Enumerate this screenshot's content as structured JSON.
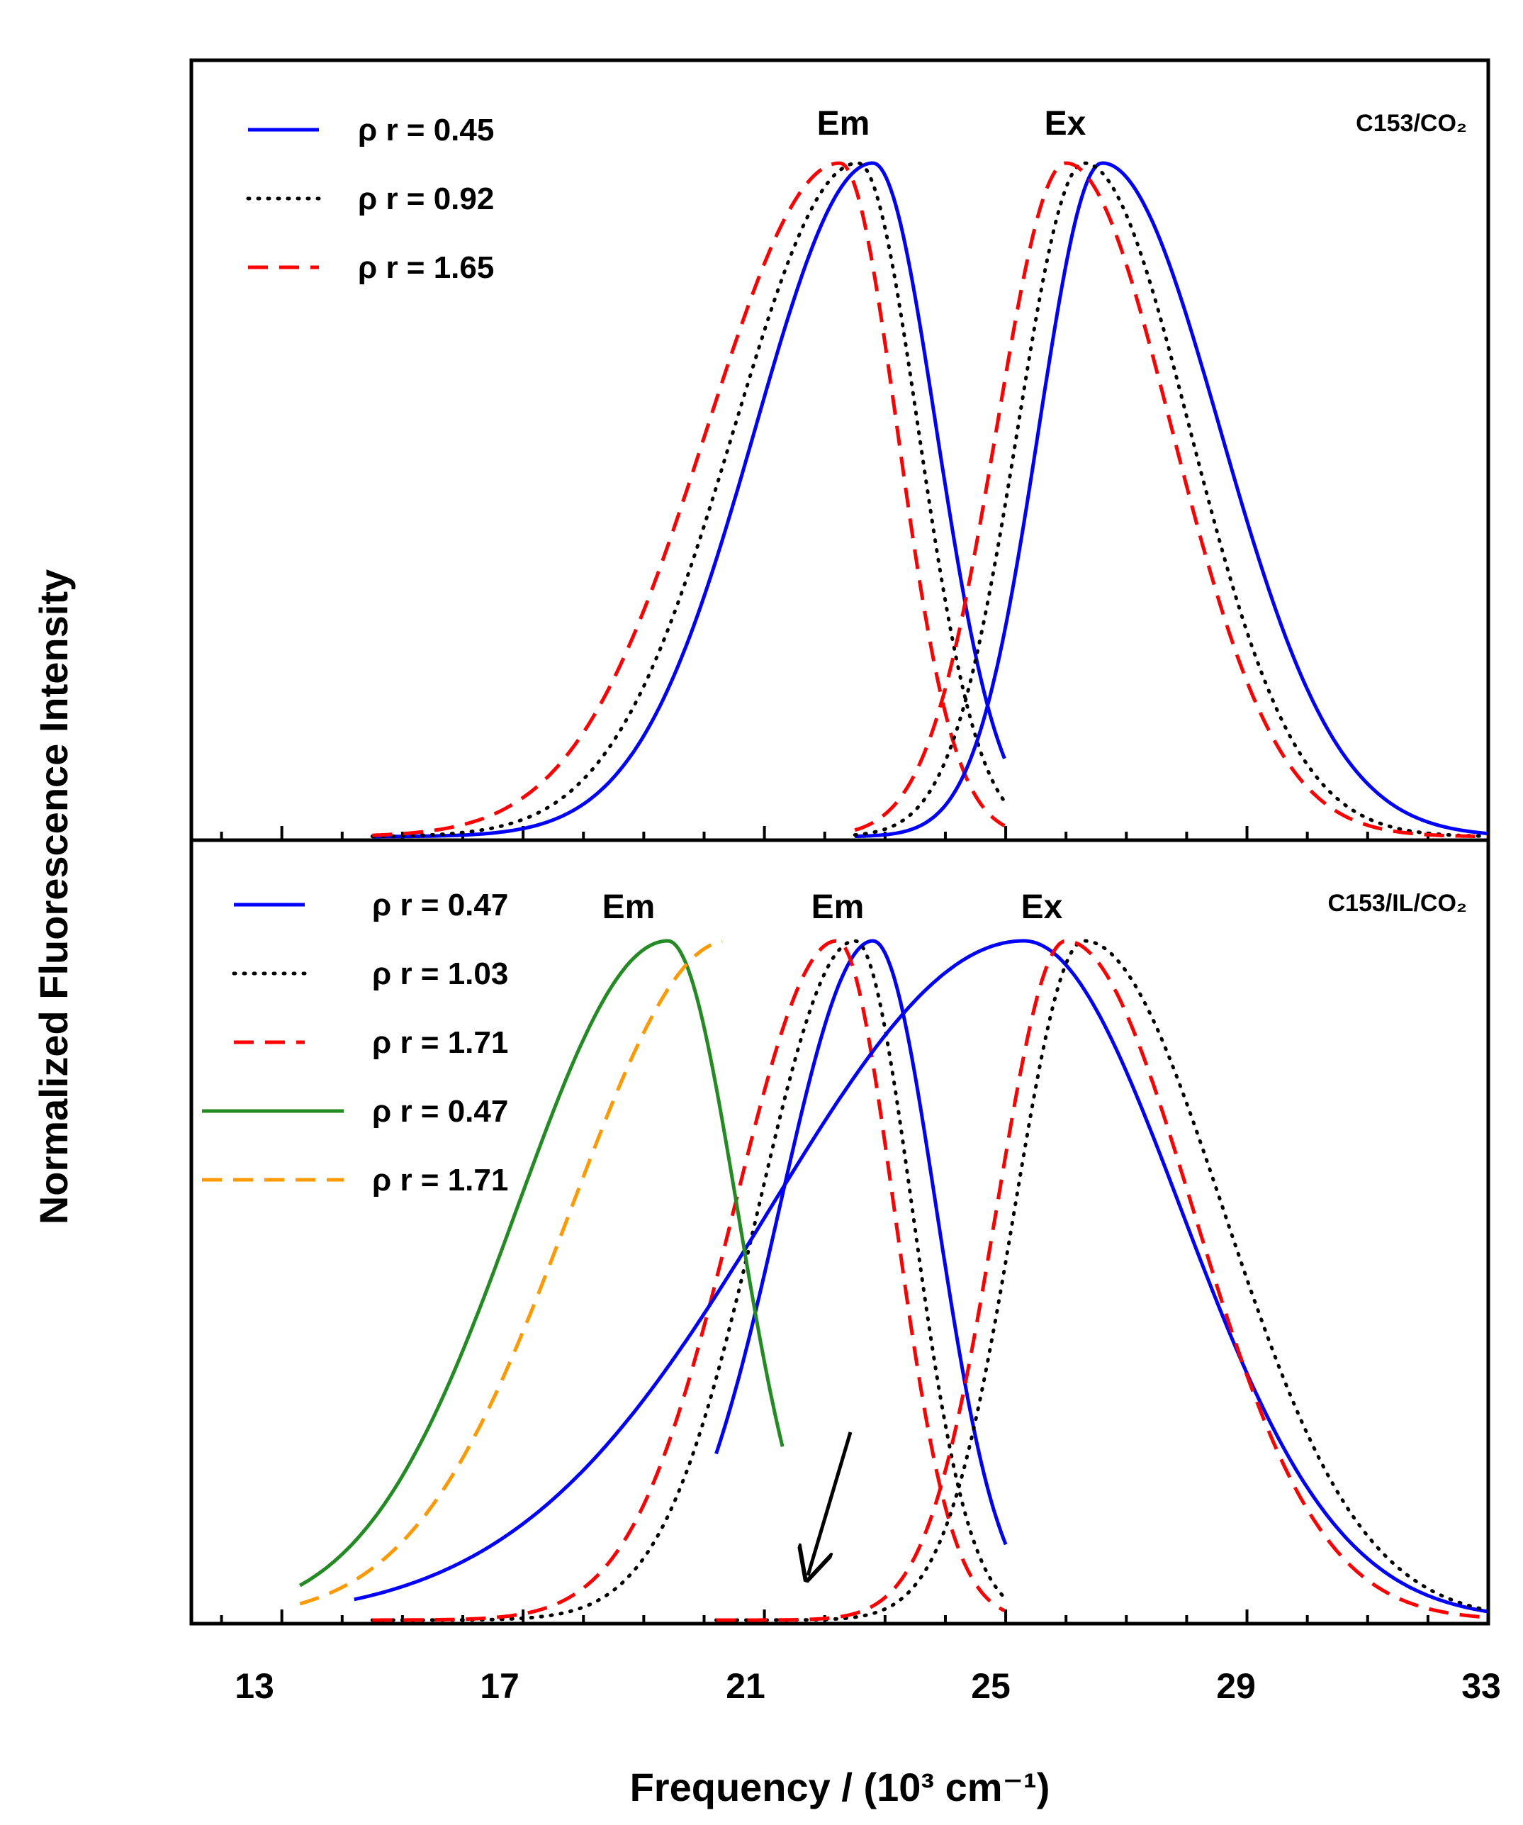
{
  "chart_data": {
    "type": "line",
    "xlabel": "Frequency / (10³ cm⁻¹)",
    "ylabel": "Normalized Fluorescence Intensity",
    "xlim": [
      11.5,
      33
    ],
    "xticks": [
      "13",
      "17",
      "21",
      "25",
      "29",
      "33"
    ],
    "panels": [
      {
        "label": "C153/CO₂",
        "annotations": [
          "Em",
          "Ex"
        ],
        "series": [
          {
            "name": "ρ r = 0.45",
            "color": "#0000ff",
            "style": "solid",
            "type": "emission",
            "center": 22.8,
            "sigma_left": 1.95,
            "sigma_right": 1.05,
            "x_range": [
              14.5,
              25.0
            ]
          },
          {
            "name": "ρ r = 0.92",
            "color": "#000000",
            "style": "dotted",
            "type": "emission",
            "center": 22.55,
            "sigma_left": 2.05,
            "sigma_right": 1.0,
            "x_range": [
              14.5,
              25.0
            ]
          },
          {
            "name": "ρ r = 1.65",
            "color": "#ff0000",
            "style": "dashed",
            "type": "emission",
            "center": 22.25,
            "sigma_left": 2.2,
            "sigma_right": 0.95,
            "x_range": [
              14.5,
              25.0
            ]
          },
          {
            "name": "ρ r = 0.45",
            "color": "#0000ff",
            "style": "solid",
            "type": "excitation",
            "center": 26.6,
            "sigma_left": 1.05,
            "sigma_right": 1.95,
            "x_range": [
              22.5,
              33.0
            ]
          },
          {
            "name": "ρ r = 0.92",
            "color": "#000000",
            "style": "dotted",
            "type": "excitation",
            "center": 26.3,
            "sigma_left": 1.1,
            "sigma_right": 1.75,
            "x_range": [
              22.5,
              33.0
            ]
          },
          {
            "name": "ρ r = 1.65",
            "color": "#ff0000",
            "style": "dashed",
            "type": "excitation",
            "center": 26.0,
            "sigma_left": 1.15,
            "sigma_right": 1.75,
            "x_range": [
              22.5,
              33.0
            ]
          }
        ]
      },
      {
        "label": "C153/IL/CO₂",
        "annotations": [
          "Em",
          "Em",
          "Ex"
        ],
        "series": [
          {
            "name": "ρ r = 0.47",
            "color": "#0000ff",
            "style": "solid",
            "type": "emission",
            "center": 22.8,
            "sigma_left": 1.55,
            "sigma_right": 1.05,
            "x_range": [
              20.2,
              25.0
            ]
          },
          {
            "name": "ρ r = 1.03",
            "color": "#000000",
            "style": "dotted",
            "type": "emission",
            "center": 22.5,
            "sigma_left": 1.6,
            "sigma_right": 0.95,
            "x_range": [
              14.5,
              25.0
            ]
          },
          {
            "name": "ρ r = 1.71",
            "color": "#ff0000",
            "style": "dashed",
            "type": "emission",
            "center": 22.2,
            "sigma_left": 1.7,
            "sigma_right": 0.95,
            "x_range": [
              14.5,
              25.0
            ]
          },
          {
            "name": "ρ r = 0.47",
            "color": "#0000ff",
            "style": "solid",
            "type": "excitation",
            "center": 25.3,
            "sigma_left": 4.2,
            "sigma_right": 2.6,
            "x_range": [
              14.2,
              33.0
            ]
          },
          {
            "name": "ρ r = 1.03",
            "color": "#000000",
            "style": "dotted",
            "type": "excitation",
            "center": 26.3,
            "sigma_left": 1.15,
            "sigma_right": 2.3,
            "x_range": [
              20.2,
              33.0
            ]
          },
          {
            "name": "ρ r = 1.71",
            "color": "#ff0000",
            "style": "dashed",
            "type": "excitation",
            "center": 26.0,
            "sigma_left": 1.15,
            "sigma_right": 2.1,
            "x_range": [
              20.2,
              33.0
            ]
          },
          {
            "name": "ρ r = 0.47",
            "color": "#228b22",
            "style": "solid",
            "type": "difference",
            "center": 19.4,
            "sigma_left": 2.5,
            "sigma_right": 1.15,
            "x_range": [
              13.3,
              21.3
            ]
          },
          {
            "name": "ρ r = 1.71",
            "color": "#ff9900",
            "style": "dashed",
            "type": "difference",
            "center": 20.4,
            "sigma_left": 2.6,
            "sigma_right": 3.0,
            "x_range": [
              13.3,
              20.3
            ]
          }
        ]
      }
    ]
  }
}
